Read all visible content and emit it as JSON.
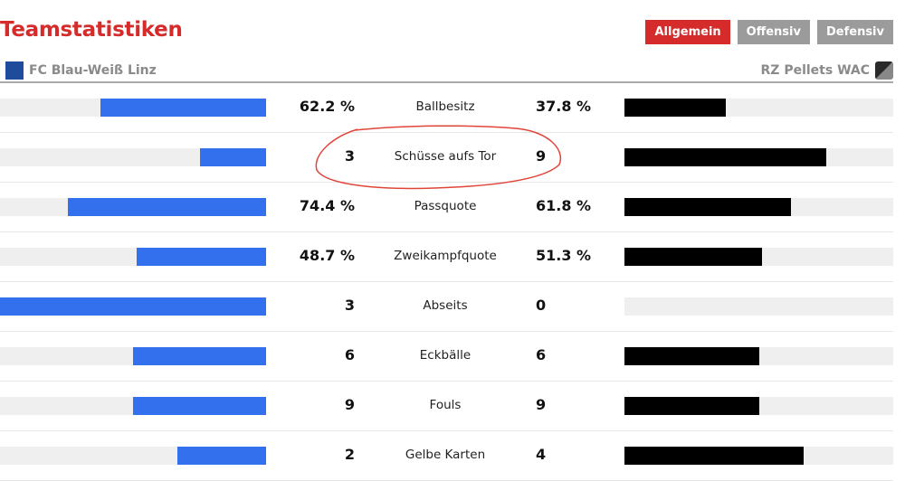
{
  "title": "Teamstatistiken",
  "tabs": [
    {
      "label": "Allgemein",
      "active": true
    },
    {
      "label": "Offensiv",
      "active": false
    },
    {
      "label": "Defensiv",
      "active": false
    }
  ],
  "home": {
    "name": "FC Blau-Weiß Linz",
    "color": "#3370ee"
  },
  "away": {
    "name": "RZ Pellets WAC",
    "color": "#000000"
  },
  "stats": [
    {
      "label": "Ballbesitz",
      "home": "62.2 %",
      "away": "37.8 %",
      "home_share": 62.2,
      "away_share": 37.8
    },
    {
      "label": "Schüsse aufs Tor",
      "home": "3",
      "away": "9",
      "home_share": 25,
      "away_share": 75,
      "highlighted": true
    },
    {
      "label": "Passquote",
      "home": "74.4 %",
      "away": "61.8 %",
      "home_share": 74.4,
      "away_share": 61.8
    },
    {
      "label": "Zweikampfquote",
      "home": "48.7 %",
      "away": "51.3 %",
      "home_share": 48.7,
      "away_share": 51.3
    },
    {
      "label": "Abseits",
      "home": "3",
      "away": "0",
      "home_share": 100,
      "away_share": 0
    },
    {
      "label": "Eckbälle",
      "home": "6",
      "away": "6",
      "home_share": 50,
      "away_share": 50
    },
    {
      "label": "Fouls",
      "home": "9",
      "away": "9",
      "home_share": 50,
      "away_share": 50
    },
    {
      "label": "Gelbe Karten",
      "home": "2",
      "away": "4",
      "home_share": 33.3,
      "away_share": 66.7
    }
  ],
  "highlight_color": "#e0453a"
}
